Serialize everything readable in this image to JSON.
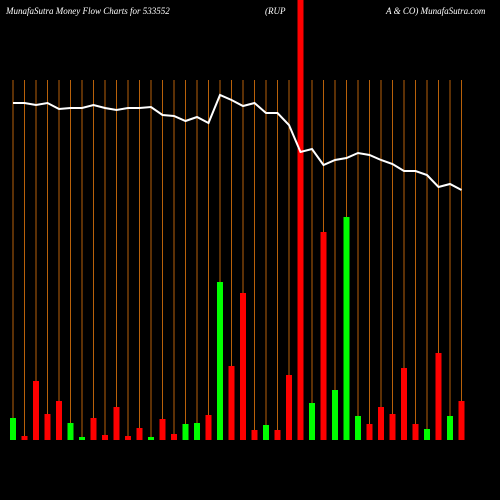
{
  "chart_data": {
    "type": "bar",
    "title_parts": [
      "MunafaSutra  Money  Flow  Charts for 533552",
      "(RUP",
      "A & CO) MunafaSutra.com"
    ],
    "categories": [
      null,
      null,
      null,
      null,
      null,
      null,
      null,
      null,
      null,
      null,
      null,
      null,
      null,
      null,
      null,
      null,
      null,
      null,
      null,
      null,
      null,
      null,
      null,
      null,
      null,
      null,
      null,
      null,
      null,
      null,
      null,
      null,
      null,
      null,
      null,
      null,
      null,
      null,
      null,
      null
    ],
    "values": [
      22,
      4,
      59,
      26,
      39,
      17,
      3,
      22,
      5,
      33,
      4,
      12,
      3,
      21,
      6,
      16,
      17,
      25,
      158,
      74,
      147,
      10,
      15,
      10,
      65,
      440,
      37,
      208,
      50,
      223,
      24,
      16,
      33,
      26,
      72,
      16,
      11,
      87,
      24,
      39
    ],
    "colors": [
      "#00ff00",
      "#ff0000",
      "#ff0000",
      "#ff0000",
      "#ff0000",
      "#00ff00",
      "#00ff00",
      "#ff0000",
      "#ff0000",
      "#ff0000",
      "#ff0000",
      "#ff0000",
      "#00ff00",
      "#ff0000",
      "#ff0000",
      "#00ff00",
      "#00ff00",
      "#ff0000",
      "#00ff00",
      "#ff0000",
      "#ff0000",
      "#ff0000",
      "#00ff00",
      "#ff0000",
      "#ff0000",
      "#ff0000",
      "#00ff00",
      "#ff0000",
      "#00ff00",
      "#00ff00",
      "#00ff00",
      "#ff0000",
      "#ff0000",
      "#ff0000",
      "#ff0000",
      "#ff0000",
      "#00ff00",
      "#ff0000",
      "#00ff00",
      "#ff0000"
    ],
    "line": {
      "color": "#ffffff",
      "values": [
        337,
        337,
        335,
        337,
        331,
        332,
        332,
        335,
        332,
        330,
        332,
        332,
        333,
        325,
        324,
        319,
        323,
        317,
        345,
        340,
        334,
        337,
        327,
        327,
        315,
        288,
        291,
        275,
        280,
        282,
        287,
        285,
        280,
        276,
        269,
        269,
        265,
        253,
        256,
        250
      ]
    },
    "gridline_color": "#b8610a"
  }
}
